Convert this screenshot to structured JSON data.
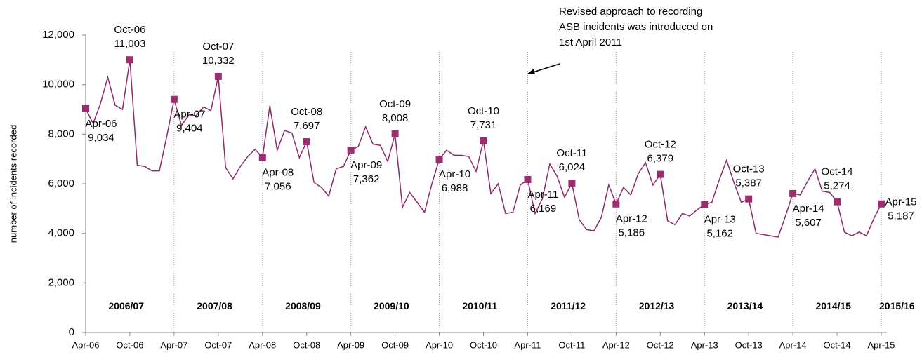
{
  "chart_data": {
    "type": "line",
    "y_label": "number of incidents recorded",
    "annotation": [
      "Revised approach to recording",
      "ASB incidents was introduced on",
      "1st April 2011"
    ],
    "ylim": [
      0,
      12000
    ],
    "yticks": [
      0,
      {
        "value": 2000,
        "label": "2,000"
      },
      {
        "value": 4000,
        "label": "4,000"
      },
      {
        "value": 6000,
        "label": "6,000"
      },
      {
        "value": 8000,
        "label": "8,000"
      },
      {
        "value": 10000,
        "label": "10,000"
      },
      {
        "value": 12000,
        "label": "12,000"
      }
    ],
    "periods": [
      "2006/07",
      "2007/08",
      "2008/09",
      "2009/10",
      "2010/11",
      "2011/12",
      "2012/13",
      "2013/14",
      "2014/15",
      "2015/16"
    ],
    "color": "#8e2a6a",
    "marker_color": "#9b2d6e",
    "categories": [
      "Apr-06",
      null,
      null,
      null,
      null,
      null,
      "Oct-06",
      null,
      null,
      null,
      null,
      null,
      "Apr-07",
      null,
      null,
      null,
      null,
      null,
      "Oct-07",
      null,
      null,
      null,
      null,
      null,
      "Apr-08",
      null,
      null,
      null,
      null,
      null,
      "Oct-08",
      null,
      null,
      null,
      null,
      null,
      "Apr-09",
      null,
      null,
      null,
      null,
      null,
      "Oct-09",
      null,
      null,
      null,
      null,
      null,
      "Apr-10",
      null,
      null,
      null,
      null,
      null,
      "Oct-10",
      null,
      null,
      null,
      null,
      null,
      "Apr-11",
      null,
      null,
      null,
      null,
      null,
      "Oct-11",
      null,
      null,
      null,
      null,
      null,
      "Apr-12",
      null,
      null,
      null,
      null,
      null,
      "Oct-12",
      null,
      null,
      null,
      null,
      null,
      "Apr-13",
      null,
      null,
      null,
      null,
      null,
      "Oct-13",
      null,
      null,
      null,
      null,
      null,
      "Apr-14",
      null,
      null,
      null,
      null,
      null,
      "Oct-14",
      null,
      null,
      null,
      null,
      null,
      "Apr-15"
    ],
    "values": [
      9034,
      8430,
      9230,
      10300,
      9170,
      9000,
      11003,
      6750,
      6700,
      6520,
      6520,
      7900,
      9404,
      8350,
      8780,
      8750,
      9100,
      8950,
      10332,
      6650,
      6200,
      6700,
      7100,
      7390,
      7056,
      9150,
      7350,
      8150,
      8050,
      7050,
      7697,
      6050,
      5850,
      5500,
      6600,
      6700,
      7362,
      7500,
      8300,
      7600,
      7550,
      6900,
      8008,
      5050,
      5650,
      5250,
      4850,
      6000,
      6988,
      7350,
      7150,
      7150,
      7100,
      6500,
      7731,
      5600,
      6000,
      4800,
      4850,
      5950,
      6169,
      4800,
      5400,
      6800,
      6300,
      5450,
      6024,
      4550,
      4150,
      4100,
      4650,
      5950,
      5186,
      5850,
      5550,
      6400,
      6850,
      5950,
      6379,
      4500,
      4350,
      4800,
      4700,
      4950,
      5162,
      5250,
      6150,
      6950,
      6050,
      5250,
      5387,
      4000,
      3950,
      3900,
      3850,
      4700,
      5607,
      5550,
      6100,
      6600,
      5700,
      5650,
      5274,
      4050,
      3900,
      4050,
      3900,
      4600,
      5187
    ],
    "value_labels": [
      "9,034",
      null,
      null,
      null,
      null,
      null,
      "11,003",
      null,
      null,
      null,
      null,
      null,
      "9,404",
      null,
      null,
      null,
      null,
      null,
      "10,332",
      null,
      null,
      null,
      null,
      null,
      "7,056",
      null,
      null,
      null,
      null,
      null,
      "7,697",
      null,
      null,
      null,
      null,
      null,
      "7,362",
      null,
      null,
      null,
      null,
      null,
      "8,008",
      null,
      null,
      null,
      null,
      null,
      "6,988",
      null,
      null,
      null,
      null,
      null,
      "7,731",
      null,
      null,
      null,
      null,
      null,
      "6,169",
      null,
      null,
      null,
      null,
      null,
      "6,024",
      null,
      null,
      null,
      null,
      null,
      "5,186",
      null,
      null,
      null,
      null,
      null,
      "6,379",
      null,
      null,
      null,
      null,
      null,
      "5,162",
      null,
      null,
      null,
      null,
      null,
      "5,387",
      null,
      null,
      null,
      null,
      null,
      "5,607",
      null,
      null,
      null,
      null,
      null,
      "5,274",
      null,
      null,
      null,
      null,
      null,
      "5,187"
    ]
  }
}
